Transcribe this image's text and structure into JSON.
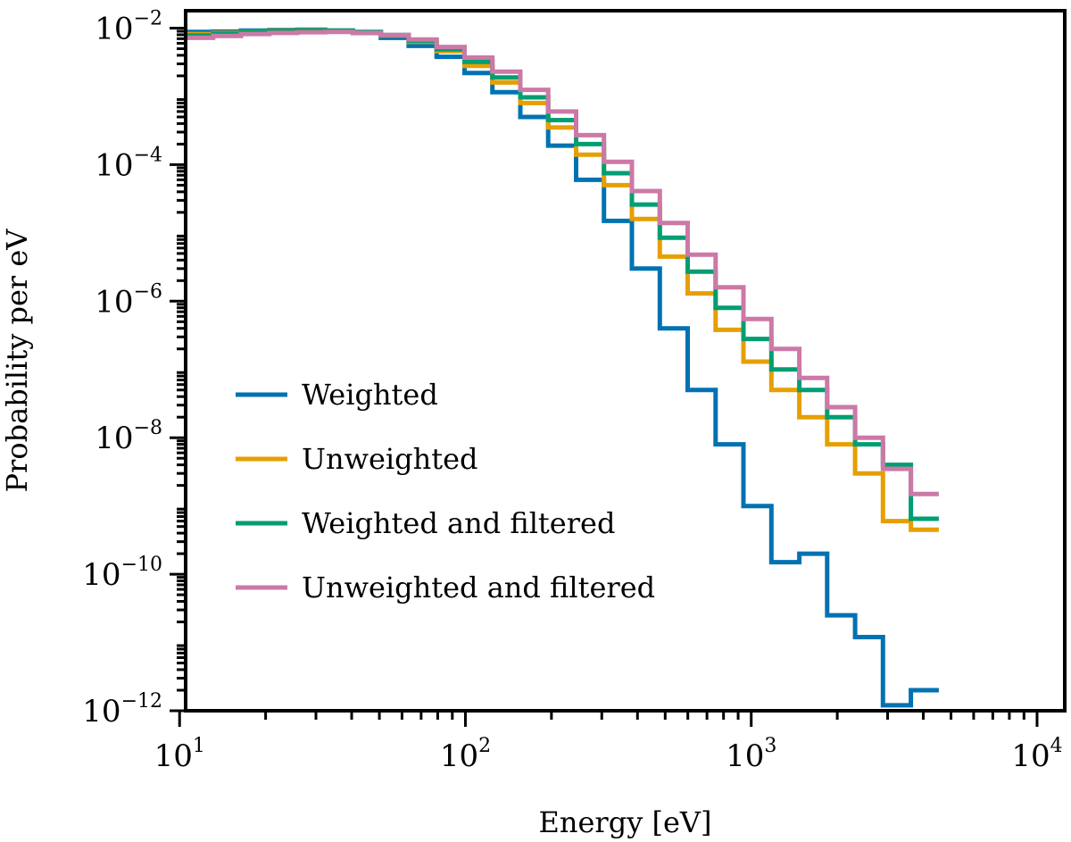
{
  "chart_data": {
    "type": "line",
    "drawstyle": "steps",
    "xscale": "log",
    "yscale": "log",
    "xlabel": "Energy [eV]",
    "ylabel": "Probability per eV",
    "xlim": [
      10.5,
      12500
    ],
    "ylim": [
      1e-12,
      0.018
    ],
    "xticks": [
      {
        "value": 10,
        "base": "10",
        "exp": "1"
      },
      {
        "value": 100,
        "base": "10",
        "exp": "2"
      },
      {
        "value": 1000,
        "base": "10",
        "exp": "3"
      },
      {
        "value": 10000,
        "base": "10",
        "exp": "4"
      }
    ],
    "yticks": [
      {
        "value": 0.01,
        "base": "10",
        "exp": "−2"
      },
      {
        "value": 0.0001,
        "base": "10",
        "exp": "−4"
      },
      {
        "value": 1e-06,
        "base": "10",
        "exp": "−6"
      },
      {
        "value": 1e-08,
        "base": "10",
        "exp": "−8"
      },
      {
        "value": 1e-10,
        "base": "10",
        "exp": "−10"
      },
      {
        "value": 1e-12,
        "base": "10",
        "exp": "−12"
      }
    ],
    "legend_position": "lower-left",
    "bin_edges": [
      10.5,
      13.1,
      16.4,
      20.6,
      25.8,
      32.3,
      40.4,
      50.6,
      63.3,
      79.3,
      99.3,
      124.3,
      155.6,
      194.8,
      243.9,
      305.4,
      382.3,
      478.7,
      599.4,
      750.4,
      939.5,
      1176.3,
      1472.8,
      1843.9,
      2308.6,
      2890.5,
      3619.0,
      4531.0
    ],
    "series": [
      {
        "name": "Weighted",
        "color": "#0072b2",
        "values": [
          0.0088,
          0.0089,
          0.0092,
          0.0094,
          0.0095,
          0.0092,
          0.0085,
          0.0072,
          0.0055,
          0.0038,
          0.0022,
          0.00115,
          0.0005,
          0.00019,
          6e-05,
          1.5e-05,
          3e-06,
          4e-07,
          5e-08,
          8e-09,
          1e-09,
          1.5e-10,
          2e-10,
          2.5e-11,
          1.2e-11,
          1.2e-12,
          2e-12
        ]
      },
      {
        "name": "Unweighted",
        "color": "#e69f00",
        "values": [
          0.0082,
          0.0085,
          0.0089,
          0.0093,
          0.0094,
          0.0092,
          0.0087,
          0.0078,
          0.0063,
          0.0046,
          0.0028,
          0.0016,
          0.0008,
          0.00035,
          0.00014,
          5e-05,
          1.6e-05,
          4.5e-06,
          1.3e-06,
          3.8e-07,
          1.3e-07,
          5e-08,
          2e-08,
          8e-09,
          3e-09,
          6e-10,
          4.5e-10
        ]
      },
      {
        "name": "Weighted and filtered",
        "color": "#009e73",
        "values": [
          0.0078,
          0.0083,
          0.0088,
          0.0092,
          0.0093,
          0.0092,
          0.0088,
          0.0079,
          0.0065,
          0.0049,
          0.0032,
          0.0019,
          0.00097,
          0.00045,
          0.0002,
          7.5e-05,
          2.6e-05,
          8.5e-06,
          2.7e-06,
          8e-07,
          2.8e-07,
          1e-07,
          5e-08,
          2e-08,
          8e-09,
          4e-09,
          6.5e-10
        ]
      },
      {
        "name": "Unweighted and filtered",
        "color": "#cc79a7",
        "values": [
          0.0072,
          0.0077,
          0.0082,
          0.0085,
          0.0087,
          0.0088,
          0.0085,
          0.0079,
          0.0068,
          0.0053,
          0.0037,
          0.0023,
          0.00125,
          0.0006,
          0.00027,
          0.00011,
          4.1e-05,
          1.4e-05,
          4.8e-06,
          1.6e-06,
          5.5e-07,
          2e-07,
          7.5e-08,
          2.8e-08,
          1e-08,
          3.5e-09,
          1.5e-09
        ]
      }
    ]
  }
}
